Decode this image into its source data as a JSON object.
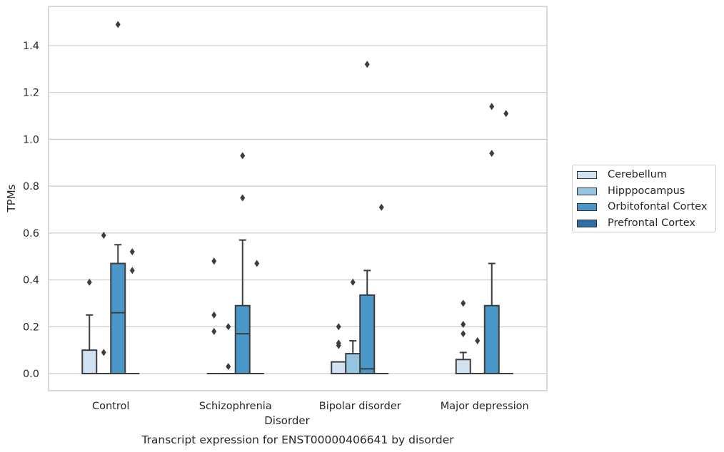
{
  "chart_data": {
    "type": "box",
    "title": "",
    "caption": "Transcript expression for ENST00000406641 by disorder",
    "xlabel": "Disorder",
    "ylabel": "TPMs",
    "ylim": [
      -0.07,
      1.56
    ],
    "yticks": [
      "0.0",
      "0.2",
      "0.4",
      "0.6",
      "0.8",
      "1.0",
      "1.2",
      "1.4"
    ],
    "grid": "horizontal",
    "legend_position": "right",
    "categories": [
      "Control",
      "Schizophrenia",
      "Bipolar disorder",
      "Major depression"
    ],
    "series": [
      {
        "name": "Cerebellum",
        "color": "#d0e1f2",
        "boxes": [
          {
            "q1": 0,
            "median": 0,
            "q3": 0.1,
            "whisker_low": 0,
            "whisker_high": 0.25,
            "outliers": [
              0.39
            ]
          },
          {
            "q1": 0,
            "median": 0,
            "q3": 0,
            "whisker_low": 0,
            "whisker_high": 0,
            "outliers": [
              0.48,
              0.25,
              0.18
            ]
          },
          {
            "q1": 0,
            "median": 0,
            "q3": 0.05,
            "whisker_low": 0,
            "whisker_high": 0.05,
            "outliers": [
              0.2,
              0.13,
              0.12
            ]
          },
          {
            "q1": 0,
            "median": 0,
            "q3": 0.06,
            "whisker_low": 0,
            "whisker_high": 0.09,
            "outliers": [
              0.3,
              0.21,
              0.17
            ]
          }
        ]
      },
      {
        "name": "Hipppocampus",
        "color": "#94c4df",
        "boxes": [
          {
            "q1": 0,
            "median": 0,
            "q3": 0,
            "whisker_low": 0,
            "whisker_high": 0,
            "outliers": [
              0.59,
              0.09
            ]
          },
          {
            "q1": 0,
            "median": 0,
            "q3": 0,
            "whisker_low": 0,
            "whisker_high": 0,
            "outliers": [
              0.2,
              0.03
            ]
          },
          {
            "q1": 0,
            "median": 0,
            "q3": 0.085,
            "whisker_low": 0,
            "whisker_high": 0.14,
            "outliers": [
              0.39
            ]
          },
          {
            "q1": 0,
            "median": 0,
            "q3": 0,
            "whisker_low": 0,
            "whisker_high": 0,
            "outliers": [
              0.14
            ]
          }
        ]
      },
      {
        "name": "Orbitofontal Cortex",
        "color": "#4a98c9",
        "boxes": [
          {
            "q1": 0,
            "median": 0.26,
            "q3": 0.47,
            "whisker_low": 0,
            "whisker_high": 0.55,
            "outliers": [
              1.49
            ]
          },
          {
            "q1": 0,
            "median": 0.17,
            "q3": 0.29,
            "whisker_low": 0,
            "whisker_high": 0.57,
            "outliers": [
              0.93,
              0.75
            ]
          },
          {
            "q1": 0,
            "median": 0.02,
            "q3": 0.335,
            "whisker_low": 0,
            "whisker_high": 0.44,
            "outliers": [
              1.32
            ]
          },
          {
            "q1": 0,
            "median": 0,
            "q3": 0.29,
            "whisker_low": 0,
            "whisker_high": 0.47,
            "outliers": [
              1.14,
              0.94
            ]
          }
        ]
      },
      {
        "name": "Prefrontal Cortex",
        "color": "#2e6ea9",
        "boxes": [
          {
            "q1": 0,
            "median": 0,
            "q3": 0,
            "whisker_low": 0,
            "whisker_high": 0,
            "outliers": [
              0.52,
              0.44
            ]
          },
          {
            "q1": 0,
            "median": 0,
            "q3": 0,
            "whisker_low": 0,
            "whisker_high": 0,
            "outliers": [
              0.47
            ]
          },
          {
            "q1": 0,
            "median": 0,
            "q3": 0,
            "whisker_low": 0,
            "whisker_high": 0,
            "outliers": [
              0.71
            ]
          },
          {
            "q1": 0,
            "median": 0,
            "q3": 0,
            "whisker_low": 0,
            "whisker_high": 0,
            "outliers": [
              1.11
            ]
          }
        ]
      }
    ]
  }
}
